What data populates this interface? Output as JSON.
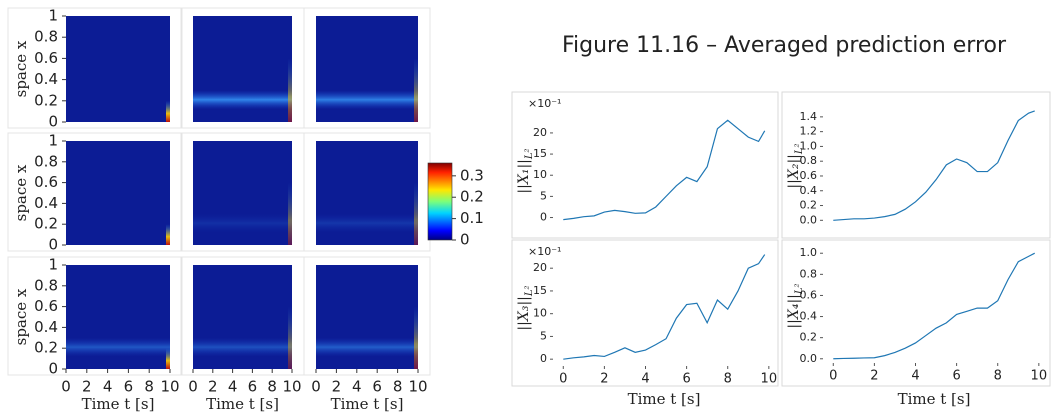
{
  "title": "Figure 11.16 – Averaged prediction error",
  "chart_data": [
    {
      "type": "heatmap",
      "ylabel": "space x",
      "xlabel": "Time t [s]",
      "xlim": [
        0,
        10
      ],
      "ylim": [
        0,
        1
      ],
      "xticks": [
        0,
        2,
        4,
        6,
        8,
        10
      ],
      "yticks": [
        0,
        0.2,
        0.4,
        0.6,
        0.8,
        1
      ],
      "colormap": "jet",
      "colorbar": {
        "lim": [
          0,
          0.36
        ],
        "ticks": [
          0,
          0.1,
          0.2,
          0.3
        ]
      }
    },
    {
      "type": "line",
      "ylabel": "||X₁||",
      "ylabel_subscript": "L²",
      "y_multiplier": "×10⁻¹",
      "color": "#1f77b4",
      "x": [
        0,
        0.5,
        1,
        1.5,
        2,
        2.5,
        3,
        3.5,
        4,
        4.5,
        5,
        5.5,
        6,
        6.5,
        7,
        7.5,
        8,
        8.5,
        9,
        9.5,
        9.8
      ],
      "values": [
        -0.5,
        -0.2,
        0.2,
        0.4,
        1.3,
        1.7,
        1.4,
        1.0,
        1.1,
        2.5,
        5,
        7.5,
        9.5,
        8.5,
        12,
        21,
        23,
        21,
        19,
        18,
        20.5
      ],
      "xlim": [
        -0.5,
        10.3
      ],
      "ylim": [
        -2,
        24
      ],
      "yticks": [
        0,
        5,
        10,
        15,
        20
      ]
    },
    {
      "type": "line",
      "ylabel": "||X₂||",
      "ylabel_subscript": "L²",
      "color": "#1f77b4",
      "x": [
        0,
        0.5,
        1,
        1.5,
        2,
        2.5,
        3,
        3.5,
        4,
        4.5,
        5,
        5.5,
        6,
        6.5,
        7,
        7.5,
        8,
        8.5,
        9,
        9.5,
        9.8
      ],
      "values": [
        0,
        0.01,
        0.02,
        0.02,
        0.03,
        0.05,
        0.08,
        0.15,
        0.25,
        0.38,
        0.55,
        0.75,
        0.83,
        0.78,
        0.66,
        0.66,
        0.78,
        1.08,
        1.35,
        1.45,
        1.48
      ],
      "xlim": [
        -0.5,
        10.3
      ],
      "ylim": [
        -0.05,
        1.52
      ],
      "yticks": [
        {
          "value": 0,
          "label": "0.0"
        },
        0.2,
        0.4,
        0.6,
        0.8,
        {
          "value": 1,
          "label": "1.0"
        },
        1.2,
        1.4
      ]
    },
    {
      "type": "line",
      "ylabel": "||X₃||",
      "ylabel_subscript": "L²",
      "y_multiplier": "×10⁻¹",
      "color": "#1f77b4",
      "xlabel": "Time t [s]",
      "x": [
        0,
        0.5,
        1,
        1.5,
        2,
        2.5,
        3,
        3.5,
        4,
        4.5,
        5,
        5.5,
        6,
        6.5,
        7,
        7.5,
        8,
        8.5,
        9,
        9.5,
        9.8
      ],
      "values": [
        0,
        0.3,
        0.5,
        0.8,
        0.6,
        1.5,
        2.5,
        1.5,
        2,
        3.2,
        4.5,
        9,
        12,
        12.3,
        8,
        13,
        11,
        15,
        20,
        21,
        23
      ],
      "xlim": [
        -0.5,
        10.3
      ],
      "ylim": [
        -1.5,
        24
      ],
      "xticks": [
        0,
        2,
        4,
        6,
        8,
        10
      ],
      "yticks": [
        0,
        5,
        10,
        15,
        20
      ]
    },
    {
      "type": "line",
      "ylabel": "||X₄||",
      "ylabel_subscript": "L²",
      "color": "#1f77b4",
      "xlabel": "Time t [s]",
      "x": [
        0,
        0.5,
        1,
        1.5,
        2,
        2.5,
        3,
        3.5,
        4,
        4.5,
        5,
        5.5,
        6,
        6.5,
        7,
        7.5,
        8,
        8.5,
        9,
        9.5,
        9.8
      ],
      "values": [
        0,
        0.003,
        0.005,
        0.008,
        0.01,
        0.03,
        0.06,
        0.1,
        0.15,
        0.22,
        0.29,
        0.34,
        0.42,
        0.45,
        0.48,
        0.48,
        0.55,
        0.75,
        0.92,
        0.97,
        1.0
      ],
      "xlim": [
        -0.5,
        10.3
      ],
      "ylim": [
        -0.04,
        1.04
      ],
      "xticks": [
        0,
        2,
        4,
        6,
        8,
        10
      ],
      "yticks": [
        {
          "value": 0,
          "label": "0.0"
        },
        0.2,
        0.4,
        0.6,
        0.8,
        {
          "value": 1,
          "label": "1.0"
        }
      ]
    }
  ]
}
